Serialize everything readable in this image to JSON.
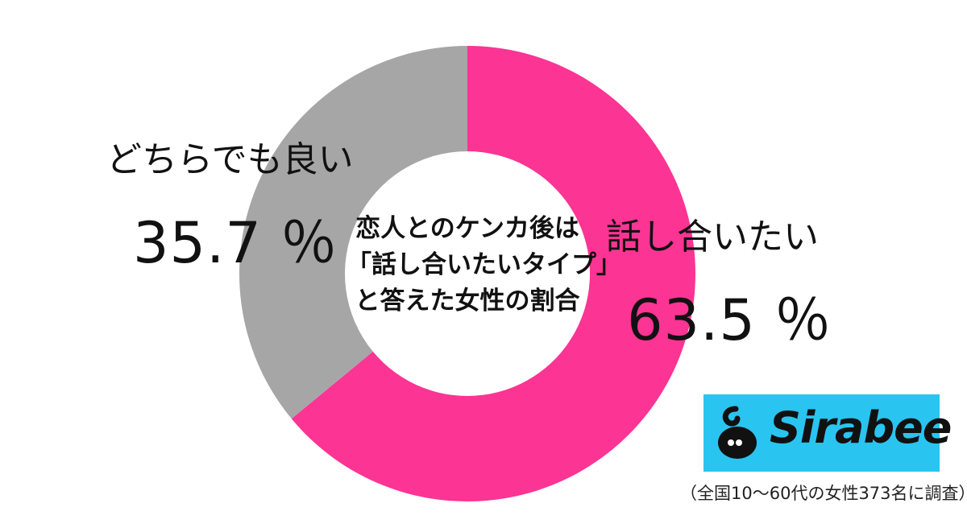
{
  "chart_data": {
    "type": "pie",
    "donut": true,
    "title_lines": [
      "恋人とのケンカ後は",
      "「話し合いたいタイプ」",
      "と答えた女性の割合"
    ],
    "slices": [
      {
        "label": "話し合いたい",
        "value": 63.5,
        "value_text": "63.5 ％",
        "color": "#fc3494"
      },
      {
        "label": "どちらでも良い",
        "value": 35.7,
        "value_text": "35.7 ％",
        "color": "#a6a6a6"
      }
    ]
  },
  "logo": {
    "text": "Sirabee",
    "bg_color": "#29c4f0"
  },
  "footnote": "（全国10～60代の女性373名に調査）"
}
